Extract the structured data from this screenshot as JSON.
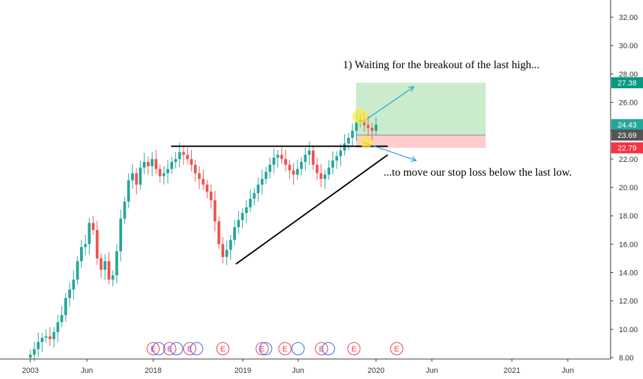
{
  "chart_data": {
    "type": "candlestick",
    "ylim": [
      7.9,
      33.0
    ],
    "y_ticks": [
      "8.00",
      "10.00",
      "12.00",
      "14.00",
      "16.00",
      "18.00",
      "20.00",
      "22.00",
      "24.00",
      "26.00",
      "28.00",
      "30.00",
      "32.00"
    ],
    "x_ticks": [
      "2003",
      "Jun",
      "2018",
      "2019",
      "Jun",
      "2020",
      "Jun",
      "2021",
      "Jun"
    ],
    "price_labels": [
      {
        "value": 27.38,
        "text": "27.38",
        "color": "#089981"
      },
      {
        "value": 24.43,
        "text": "24.43",
        "color": "#26a69a"
      },
      {
        "value": 23.69,
        "text": "23.69",
        "color": "#555555"
      },
      {
        "value": 22.79,
        "text": "22.79",
        "color": "#f23645"
      }
    ],
    "annotations": [
      "1) Waiting for the breakout of the last high...",
      "...to move our stop loss below the last low."
    ],
    "earnings_markers": [
      "E",
      "E",
      "E",
      "E",
      "E",
      "E",
      "E",
      "E",
      "E",
      "E"
    ],
    "position": {
      "entry": 23.69,
      "target": 27.38,
      "stop": 22.79
    },
    "resistance": 22.9,
    "candles_open": [
      8.0,
      8.2,
      8.6,
      9.1,
      9.4,
      9.5,
      9.3,
      9.8,
      10.5,
      11.0,
      12.2,
      12.8,
      13.5,
      14.8,
      15.8,
      16.0,
      17.5,
      17.0,
      15.0,
      14.2,
      14.8,
      13.5,
      13.8,
      15.5,
      17.8,
      19.0,
      20.5,
      21.0,
      20.2,
      21.4,
      21.8,
      21.5,
      22.0,
      21.3,
      20.8,
      21.0,
      21.3,
      21.8,
      22.0,
      22.5,
      22.3,
      22.0,
      21.6,
      21.0,
      20.6,
      20.2,
      19.7,
      19.1,
      17.6,
      16.0,
      15.1,
      15.6,
      16.3,
      17.2,
      17.7,
      18.2,
      18.6,
      19.2,
      19.6,
      20.2,
      20.6,
      21.1,
      21.6,
      22.1,
      22.3,
      22.0,
      21.6,
      21.2,
      20.9,
      21.3,
      21.8,
      22.3,
      22.6,
      21.6,
      21.0,
      20.6,
      20.9,
      21.4,
      21.9,
      22.2,
      22.6,
      23.1,
      23.5,
      24.0,
      24.6,
      24.8,
      24.4,
      24.2,
      24.0
    ],
    "candles_close": [
      8.2,
      8.6,
      9.1,
      9.4,
      9.5,
      9.3,
      9.8,
      10.5,
      11.0,
      12.2,
      12.8,
      13.5,
      14.8,
      15.8,
      16.0,
      17.5,
      17.0,
      15.0,
      14.2,
      14.8,
      13.5,
      13.8,
      15.5,
      17.8,
      19.0,
      20.5,
      21.0,
      20.2,
      21.4,
      21.8,
      21.5,
      22.0,
      21.3,
      20.8,
      21.0,
      21.3,
      21.8,
      22.0,
      22.5,
      22.3,
      22.0,
      21.6,
      21.0,
      20.6,
      20.2,
      19.7,
      19.1,
      17.6,
      16.0,
      15.1,
      15.6,
      16.3,
      17.2,
      17.7,
      18.2,
      18.6,
      19.2,
      19.6,
      20.2,
      20.6,
      21.1,
      21.6,
      22.1,
      22.3,
      22.0,
      21.6,
      21.2,
      20.9,
      21.3,
      21.8,
      22.3,
      22.6,
      21.6,
      21.0,
      20.6,
      20.9,
      21.4,
      21.9,
      22.2,
      22.6,
      23.1,
      23.5,
      24.0,
      24.6,
      24.8,
      24.4,
      24.2,
      24.0,
      24.43
    ]
  }
}
